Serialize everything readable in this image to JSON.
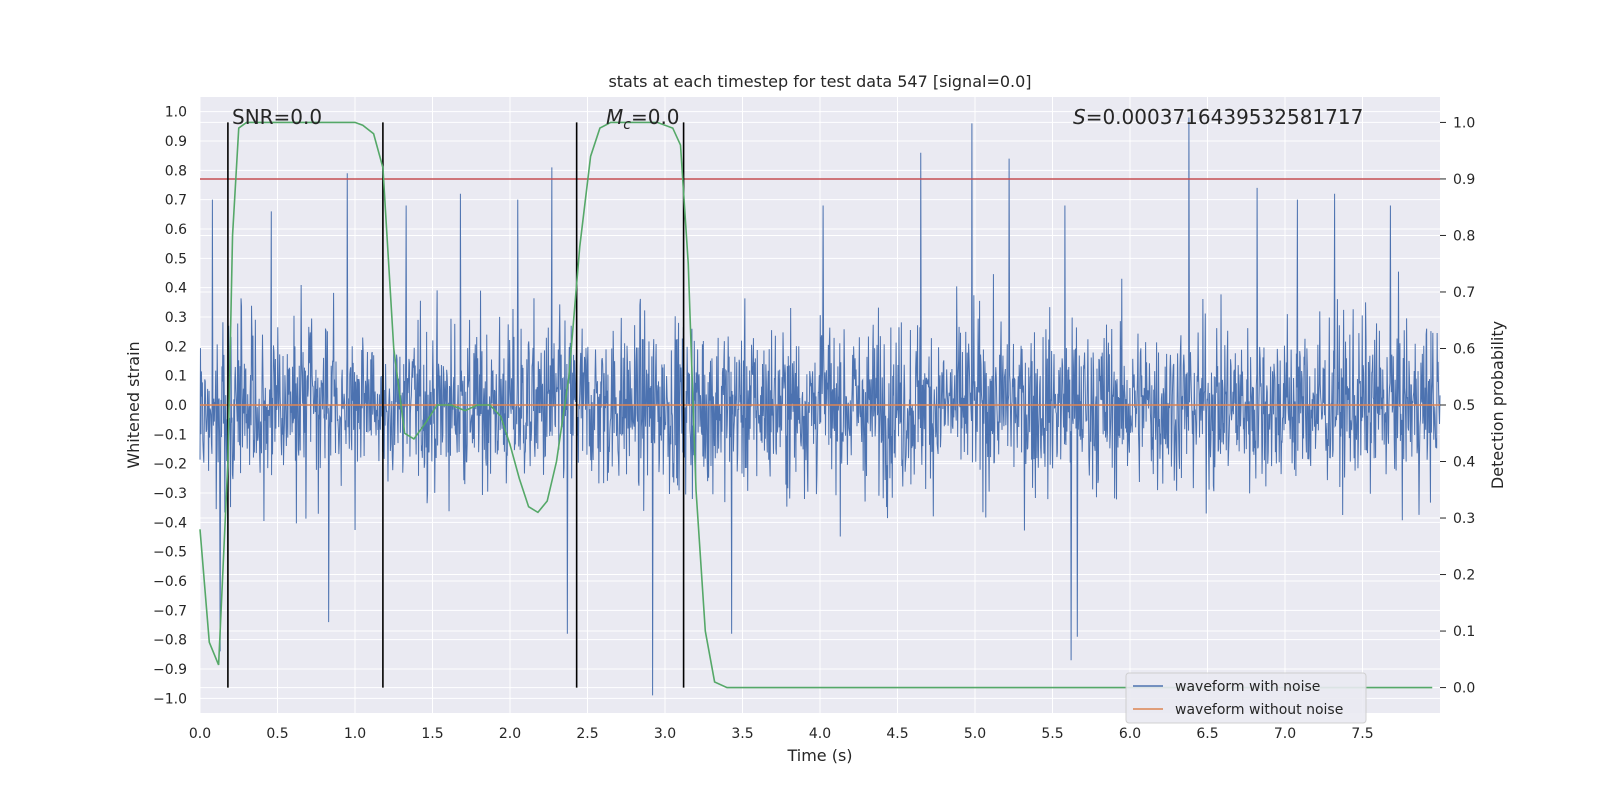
{
  "chart_data": {
    "type": "line",
    "title": "stats at each timestep for test data 547 [signal=0.0]",
    "xlabel": "Time (s)",
    "ylabel_left": "Whitened strain",
    "ylabel_right": "Detection probability",
    "xlim": [
      0.0,
      8.0
    ],
    "ylim_left": [
      -1.05,
      1.05
    ],
    "ylim_right": [
      -0.045,
      1.045
    ],
    "xticks": [
      "0.0",
      "0.5",
      "1.0",
      "1.5",
      "2.0",
      "2.5",
      "3.0",
      "3.5",
      "4.0",
      "4.5",
      "5.0",
      "5.5",
      "6.0",
      "6.5",
      "7.0",
      "7.5"
    ],
    "yticks_left": [
      "1.0",
      "0.9",
      "0.8",
      "0.7",
      "0.6",
      "0.5",
      "0.4",
      "0.3",
      "0.2",
      "0.1",
      "0.0",
      "−0.1",
      "−0.2",
      "−0.3",
      "−0.4",
      "−0.5",
      "−0.6",
      "−0.7",
      "−0.8",
      "−0.9",
      "−1.0"
    ],
    "yticks_right": [
      "1.0",
      "0.9",
      "0.8",
      "0.7",
      "0.6",
      "0.5",
      "0.4",
      "0.3",
      "0.2",
      "0.1",
      "0.0"
    ],
    "grid": true,
    "background": "#eaeaf2",
    "annotations": {
      "snr": "SNR=0.0",
      "mc_symbol": "M",
      "mc_sub": "c",
      "mc_value": "=0.0",
      "s_symbol": "S",
      "s_value": "=0.0003716439532581717"
    },
    "threshold_right": 0.9,
    "vertical_lines_x": [
      0.18,
      1.18,
      2.43,
      3.12
    ],
    "series": [
      {
        "name": "waveform with noise",
        "color": "#4c72b0",
        "axis": "left",
        "description": "noisy whitened strain, dense, roughly within [-0.6, 0.65] with sparse spikes",
        "spikes": [
          {
            "x": 0.95,
            "y": 0.79
          },
          {
            "x": 2.27,
            "y": 0.81
          },
          {
            "x": 4.65,
            "y": 0.86
          },
          {
            "x": 4.98,
            "y": 0.96
          },
          {
            "x": 5.22,
            "y": 0.84
          },
          {
            "x": 6.38,
            "y": 0.98
          },
          {
            "x": 2.92,
            "y": -0.99
          },
          {
            "x": 5.62,
            "y": -0.87
          },
          {
            "x": 0.13,
            "y": -0.84
          },
          {
            "x": 0.83,
            "y": -0.74
          },
          {
            "x": 2.37,
            "y": -0.78
          },
          {
            "x": 3.43,
            "y": -0.78
          },
          {
            "x": 5.66,
            "y": -0.79
          },
          {
            "x": 0.08,
            "y": 0.7
          },
          {
            "x": 1.68,
            "y": 0.72
          },
          {
            "x": 2.05,
            "y": 0.7
          },
          {
            "x": 6.82,
            "y": 0.74
          },
          {
            "x": 7.32,
            "y": 0.72
          },
          {
            "x": 0.46,
            "y": 0.66
          },
          {
            "x": 1.33,
            "y": 0.68
          },
          {
            "x": 4.02,
            "y": 0.68
          },
          {
            "x": 7.68,
            "y": 0.68
          },
          {
            "x": 5.58,
            "y": 0.68
          },
          {
            "x": 7.08,
            "y": 0.7
          }
        ]
      },
      {
        "name": "waveform without noise",
        "color": "#dd8452",
        "axis": "left",
        "x": [
          0.0,
          8.0
        ],
        "y": [
          0.0,
          0.0
        ]
      },
      {
        "color": "#55a868",
        "axis": "right",
        "x": [
          0.0,
          0.06,
          0.12,
          0.18,
          0.21,
          0.25,
          0.3,
          0.4,
          0.6,
          0.8,
          1.0,
          1.05,
          1.12,
          1.18,
          1.25,
          1.32,
          1.38,
          1.46,
          1.53,
          1.62,
          1.71,
          1.79,
          1.87,
          1.94,
          2.0,
          2.06,
          2.12,
          2.18,
          2.24,
          2.3,
          2.38,
          2.45,
          2.52,
          2.58,
          2.65,
          2.75,
          2.85,
          2.95,
          3.05,
          3.1,
          3.15,
          3.2,
          3.26,
          3.32,
          3.4,
          4.0,
          5.0,
          6.0,
          7.0,
          7.95
        ],
        "y": [
          0.28,
          0.08,
          0.04,
          0.4,
          0.8,
          0.99,
          1.0,
          1.0,
          1.0,
          1.0,
          1.0,
          0.995,
          0.98,
          0.92,
          0.6,
          0.45,
          0.44,
          0.47,
          0.5,
          0.5,
          0.49,
          0.5,
          0.5,
          0.48,
          0.43,
          0.37,
          0.32,
          0.31,
          0.33,
          0.4,
          0.55,
          0.78,
          0.94,
          0.99,
          1.0,
          1.0,
          1.0,
          1.0,
          0.99,
          0.96,
          0.75,
          0.35,
          0.1,
          0.01,
          0.0,
          0.0,
          0.0,
          0.0,
          0.0,
          0.0
        ]
      }
    ],
    "legend": {
      "placement": "lower right",
      "entries": [
        "waveform with noise",
        "waveform without noise"
      ]
    },
    "colors": {
      "threshold": "#c44e52",
      "vertical": "#000000",
      "grid": "#ffffff"
    }
  }
}
